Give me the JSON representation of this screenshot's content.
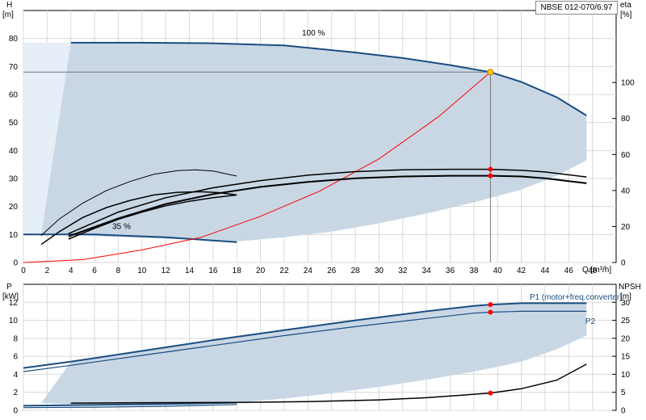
{
  "model_label": "NBSE 012-070/6.97",
  "colors": {
    "curve": "#1a4d80",
    "band": "#c9d7e5",
    "band_light": "#e6eef7",
    "system": "#ff0000",
    "operating_point_fill": "#ffcc00",
    "marker": "#ff0000",
    "grid": "#d9d9d9"
  },
  "chart_data": [
    {
      "type": "line",
      "xlabel": "Q [m³/h]",
      "ylabel_left_name": "H",
      "ylabel_left_unit": "[m]",
      "ylabel_right_name": "eta",
      "ylabel_right_unit": "[%]",
      "xlim": [
        0,
        50
      ],
      "ylim_left": [
        0,
        90
      ],
      "ylim_right": [
        0,
        140
      ],
      "x_ticks": [
        0,
        2,
        4,
        6,
        8,
        10,
        12,
        14,
        16,
        18,
        20,
        22,
        24,
        26,
        28,
        30,
        32,
        34,
        36,
        38,
        40,
        42,
        44,
        46,
        48
      ],
      "y_ticks_left": [
        0,
        10,
        20,
        30,
        40,
        50,
        60,
        70,
        80
      ],
      "y_ticks_right": [
        0,
        20,
        40,
        60,
        80,
        100
      ],
      "grid": true,
      "annotations": [
        {
          "text": "100 %",
          "x": 23.5,
          "y": 81
        },
        {
          "text": "35 %",
          "x": 7.5,
          "y": 12
        }
      ],
      "operating_point": {
        "q": 39.4,
        "h": 68
      },
      "series": [
        {
          "role": "head_max",
          "axis": "left",
          "style": "curve",
          "x": [
            4,
            10,
            16,
            22,
            28,
            32,
            36,
            39.4,
            42,
            45,
            47.5
          ],
          "y": [
            78.5,
            78.5,
            78.3,
            77.5,
            75,
            73,
            70.5,
            68,
            64.5,
            59,
            52.5
          ]
        },
        {
          "role": "head_min",
          "axis": "left",
          "style": "curve",
          "x": [
            0,
            6,
            12,
            18
          ],
          "y": [
            10,
            10,
            9,
            7.3
          ]
        },
        {
          "role": "system",
          "axis": "left",
          "style": "system",
          "x": [
            0,
            5,
            10,
            15,
            20,
            25,
            30,
            35,
            39.4
          ],
          "y": [
            0,
            1,
            4.5,
            9,
            16.5,
            25.5,
            37,
            52,
            68
          ]
        },
        {
          "role": "eta_100_a",
          "axis": "right",
          "style": "eta",
          "x": [
            3.8,
            8,
            12,
            16,
            20,
            24,
            28,
            32,
            36,
            39.4,
            42,
            44,
            47.5
          ],
          "y": [
            16,
            28,
            36,
            41.5,
            45.5,
            48.5,
            50.5,
            51.5,
            51.8,
            51.8,
            51.2,
            50.3,
            47.5
          ]
        },
        {
          "role": "eta_100_b",
          "axis": "right",
          "style": "eta_bold",
          "x": [
            3.8,
            8,
            12,
            16,
            20,
            24,
            28,
            32,
            36,
            39.4,
            42,
            44,
            47.5
          ],
          "y": [
            14.5,
            24.5,
            32.5,
            38,
            42,
            44.8,
            46.8,
            47.8,
            48.2,
            48.2,
            47.8,
            46.8,
            44
          ]
        },
        {
          "role": "eta_35_a",
          "axis": "right",
          "style": "eta_thin",
          "x": [
            1.5,
            3,
            5,
            7,
            9,
            11,
            13,
            14.5,
            16,
            18
          ],
          "y": [
            15,
            24,
            33,
            40,
            45,
            49,
            51,
            51.5,
            50.8,
            48
          ]
        },
        {
          "role": "eta_35_b",
          "axis": "right",
          "style": "eta",
          "x": [
            1.5,
            3,
            5,
            7,
            9,
            11,
            13,
            15,
            16.5,
            18
          ],
          "y": [
            10,
            17,
            25,
            30.5,
            34.5,
            37.5,
            39,
            39.3,
            38.8,
            37.5
          ]
        },
        {
          "role": "eta_35_c",
          "axis": "right",
          "style": "eta",
          "x": [
            3.8,
            6,
            8,
            10,
            12,
            14,
            16,
            18
          ],
          "y": [
            13,
            19,
            24,
            28,
            31.5,
            34,
            36,
            37.5
          ]
        }
      ],
      "markers": [
        {
          "axis": "right",
          "x": 39.4,
          "y": 51.8
        },
        {
          "axis": "right",
          "x": 39.4,
          "y": 48.2
        }
      ],
      "bands": [
        {
          "fill": "band_light",
          "upper": {
            "x": [
              0,
              4
            ],
            "y": [
              78.5,
              78.5
            ]
          },
          "lower": {
            "x": [
              0,
              1.5,
              4
            ],
            "y": [
              10,
              10,
              78.5
            ]
          }
        },
        {
          "fill": "band",
          "upper": {
            "x": [
              4,
              10,
              16,
              22,
              28,
              32,
              36,
              39.4,
              42,
              45,
              47.5
            ],
            "y": [
              78.5,
              78.5,
              78.3,
              77.5,
              75,
              73,
              70.5,
              68,
              64.5,
              59,
              52.5
            ]
          },
          "lower": {
            "x": [
              1.5,
              4,
              10,
              14,
              18,
              22,
              26,
              30,
              34,
              38,
              42,
              45,
              47.5
            ],
            "y": [
              10,
              9.8,
              8.8,
              8.2,
              7.5,
              9,
              11,
              14,
              17.5,
              21.5,
              26,
              31,
              36.5
            ]
          }
        }
      ]
    },
    {
      "type": "line",
      "xlabel": "",
      "ylabel_left_name": "P",
      "ylabel_left_unit": "[kW]",
      "ylabel_right_name": "NPSH",
      "ylabel_right_unit": "[m]",
      "xlim": [
        0,
        50
      ],
      "ylim_left": [
        0,
        14
      ],
      "ylim_right": [
        0,
        35
      ],
      "y_ticks_left": [
        0,
        2,
        4,
        6,
        8,
        10,
        12
      ],
      "y_ticks_right": [
        0,
        5,
        10,
        15,
        20,
        25,
        30
      ],
      "grid": true,
      "labels": [
        {
          "text": "P1 (motor+freq.converter)",
          "x": 42.7,
          "y": 12.3
        },
        {
          "text": "P2",
          "x": 47.4,
          "y": 9.6
        }
      ],
      "series": [
        {
          "role": "p1",
          "axis": "left",
          "style": "curve",
          "x": [
            4,
            10,
            16,
            22,
            28,
            34,
            38,
            39.4,
            42,
            47.5
          ],
          "y": [
            5.4,
            6.6,
            7.8,
            8.9,
            10,
            11,
            11.6,
            11.75,
            11.9,
            11.9
          ]
        },
        {
          "role": "p1_min",
          "axis": "left",
          "style": "curve",
          "x": [
            0,
            4
          ],
          "y": [
            4.7,
            5.4
          ]
        },
        {
          "role": "p2",
          "axis": "left",
          "style": "curve_thin",
          "x": [
            4,
            10,
            16,
            22,
            28,
            34,
            38,
            39.4,
            42,
            47.5
          ],
          "y": [
            5,
            6.1,
            7.2,
            8.3,
            9.3,
            10.2,
            10.8,
            10.9,
            11,
            11
          ]
        },
        {
          "role": "p2_min",
          "axis": "left",
          "style": "curve_thin",
          "x": [
            0,
            4
          ],
          "y": [
            4.3,
            5
          ]
        },
        {
          "role": "p_min_low",
          "axis": "left",
          "style": "curve",
          "x": [
            0,
            6,
            12,
            18
          ],
          "y": [
            0.5,
            0.6,
            0.7,
            0.85
          ]
        },
        {
          "role": "p_min_low2",
          "axis": "left",
          "style": "curve_thin",
          "x": [
            0,
            6,
            12,
            18
          ],
          "y": [
            0.3,
            0.35,
            0.45,
            0.65
          ]
        },
        {
          "role": "npsh",
          "axis": "right",
          "style": "npsh",
          "x": [
            4,
            10,
            18,
            24,
            30,
            34,
            37,
            39.4,
            42,
            45,
            47.5
          ],
          "y": [
            2,
            2.1,
            2.2,
            2.4,
            2.9,
            3.5,
            4.2,
            4.8,
            6,
            8.4,
            12.8
          ]
        }
      ],
      "markers": [
        {
          "axis": "left",
          "x": 39.4,
          "y": 11.75
        },
        {
          "axis": "left",
          "x": 39.4,
          "y": 10.9
        },
        {
          "axis": "right",
          "x": 39.4,
          "y": 4.8
        }
      ],
      "bands": [
        {
          "fill": "band",
          "upper": {
            "x": [
              4,
              10,
              16,
              22,
              28,
              34,
              38,
              39.4,
              42,
              47.5
            ],
            "y": [
              5.4,
              6.6,
              7.8,
              8.9,
              10,
              11,
              11.6,
              11.75,
              11.9,
              11.9
            ]
          },
          "lower": {
            "x": [
              1.5,
              4,
              10,
              18,
              22,
              26,
              30,
              34,
              38,
              42,
              45,
              47.5
            ],
            "y": [
              0.8,
              0.7,
              0.75,
              0.85,
              1.3,
              1.9,
              2.6,
              3.4,
              4.3,
              5.4,
              6.8,
              8.3
            ]
          }
        }
      ]
    }
  ]
}
